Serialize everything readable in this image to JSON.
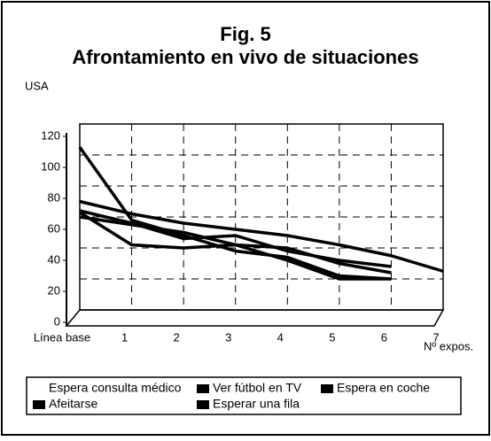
{
  "chart_data": {
    "type": "line",
    "title": "Fig. 5",
    "subtitle": "Afrontamiento en vivo de situaciones",
    "y_label": "USA",
    "x_label": "Nº expos.",
    "categories": [
      "Línea base",
      "1",
      "2",
      "3",
      "4",
      "5",
      "6",
      "7"
    ],
    "series": [
      {
        "name": "Espera consulta médico",
        "color": "#000000",
        "values": [
          105,
          58,
          48,
          38,
          34,
          22,
          20,
          null
        ]
      },
      {
        "name": "Ver fútbol en TV",
        "color": "#000000",
        "values": [
          70,
          62,
          56,
          52,
          48,
          42,
          35,
          25
        ]
      },
      {
        "name": "Espera en coche",
        "color": "#000000",
        "values": [
          63,
          42,
          40,
          42,
          32,
          20,
          20,
          null
        ]
      },
      {
        "name": "Afeitarse",
        "color": "#000000",
        "values": [
          60,
          55,
          50,
          42,
          40,
          30,
          24,
          null
        ]
      },
      {
        "name": "Esperar una fila",
        "color": "#000000",
        "values": [
          64,
          56,
          46,
          48,
          38,
          32,
          28,
          null
        ]
      }
    ],
    "ylim": [
      0,
      120
    ],
    "yticks": [
      0,
      20,
      40,
      60,
      80,
      100,
      120
    ],
    "grid": true
  }
}
